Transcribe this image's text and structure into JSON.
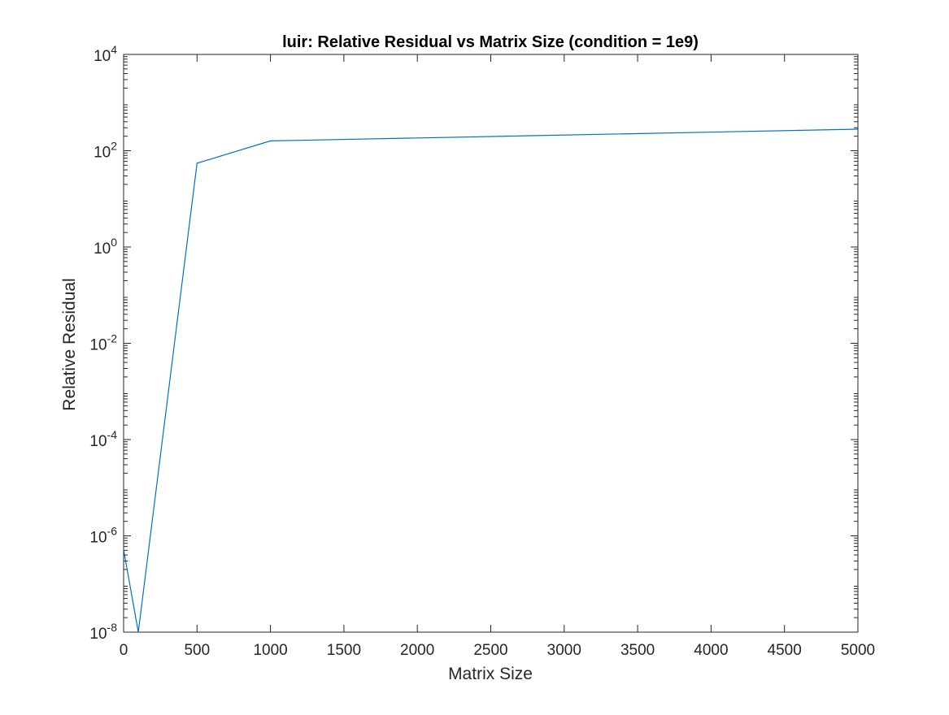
{
  "chart_data": {
    "type": "line",
    "title": "luir: Relative Residual vs Matrix Size (condition = 1e9)",
    "xlabel": "Matrix Size",
    "ylabel": "Relative Residual",
    "xlim": [
      0,
      5000
    ],
    "ylim": [
      1e-08,
      10000
    ],
    "yscale": "log",
    "grid": false,
    "legend": "none",
    "xticks": [
      0,
      500,
      1000,
      1500,
      2000,
      2500,
      3000,
      3500,
      4000,
      4500,
      5000
    ],
    "xtick_labels": [
      "0",
      "500",
      "1000",
      "1500",
      "2000",
      "2500",
      "3000",
      "3500",
      "4000",
      "4500",
      "5000"
    ],
    "yticks": [
      1e-08,
      1e-06,
      0.0001,
      0.01,
      1,
      100,
      10000
    ],
    "ytick_labels": [
      {
        "base": "10",
        "exp": "-8"
      },
      {
        "base": "10",
        "exp": "-6"
      },
      {
        "base": "10",
        "exp": "-4"
      },
      {
        "base": "10",
        "exp": "-2"
      },
      {
        "base": "10",
        "exp": "0"
      },
      {
        "base": "10",
        "exp": "2"
      },
      {
        "base": "10",
        "exp": "4"
      }
    ],
    "series": [
      {
        "color": "#0072BD",
        "x": [
          1,
          100,
          500,
          1000,
          5000
        ],
        "y": [
          5e-07,
          1e-08,
          55,
          160,
          280
        ]
      }
    ]
  }
}
